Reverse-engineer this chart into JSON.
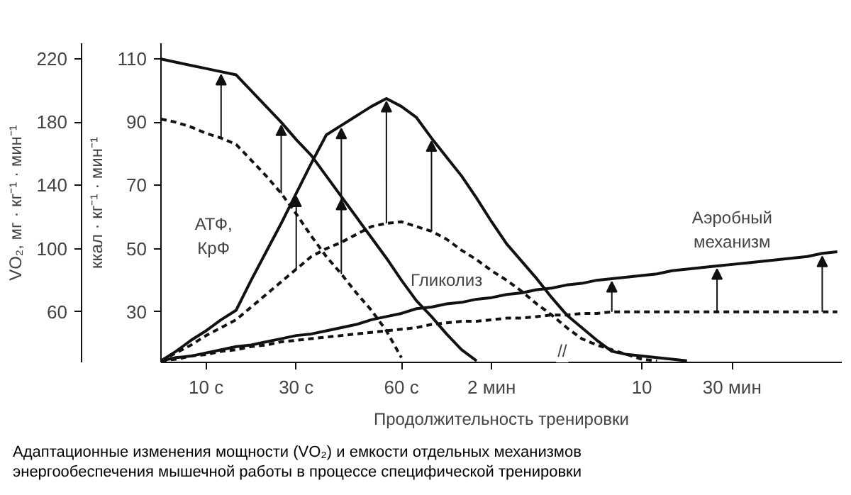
{
  "chart_data": {
    "type": "line",
    "xlabel": "Продолжительность тренировки",
    "ylabel": "VO₂, мг · кг⁻¹ · мин⁻¹",
    "y2label": "ккал · кг⁻¹ · мин⁻¹",
    "categories": [
      null,
      null,
      null,
      "10 с",
      null,
      null,
      null,
      null,
      null,
      "30 с",
      null,
      null,
      null,
      null,
      null,
      null,
      "60 с",
      null,
      null,
      null,
      null,
      null,
      "2 мин",
      null,
      null,
      null,
      null,
      null,
      null,
      null,
      null,
      null,
      "10",
      null,
      null,
      null,
      null,
      null,
      "30 мин",
      null,
      null,
      null,
      null,
      null,
      null,
      null
    ],
    "ylim": [
      28,
      230
    ],
    "y2lim": [
      14,
      115
    ],
    "yticks": [
      60,
      100,
      140,
      180,
      220
    ],
    "y2ticks": [
      30,
      50,
      70,
      90,
      110
    ],
    "grid": false,
    "marker": "none",
    "series": [
      {
        "color": "#111111",
        "line_style": "solid",
        "values": [
          220,
          218,
          216,
          214,
          212,
          210,
          200,
          190,
          180,
          169,
          159,
          146,
          133,
          120,
          107,
          94,
          80,
          67,
          57,
          46,
          36,
          29,
          null,
          null,
          null,
          null,
          null,
          null,
          null,
          null,
          null,
          null,
          null,
          null,
          null,
          null,
          null,
          null,
          null,
          null,
          null,
          null,
          null,
          null,
          null,
          null
        ]
      },
      {
        "color": "#111111",
        "line_style": "dashed",
        "values": [
          182,
          180,
          177,
          173,
          170,
          166,
          156,
          146,
          135,
          122,
          108,
          95,
          84,
          72,
          61,
          48,
          31,
          null,
          null,
          null,
          null,
          null,
          null,
          null,
          null,
          null,
          null,
          null,
          null,
          null,
          null,
          null,
          null,
          null,
          null,
          null,
          null,
          null,
          null,
          null,
          null,
          null,
          null,
          null,
          null,
          null
        ]
      },
      {
        "color": "#111111",
        "line_style": "solid",
        "values": [
          29,
          35,
          42,
          48,
          55,
          61,
          80,
          98,
          116,
          135,
          154,
          172,
          178,
          184,
          190,
          195,
          190,
          183,
          170,
          158,
          146,
          132,
          117,
          103,
          92,
          81,
          69,
          58,
          50,
          42,
          35,
          33,
          32,
          31,
          30,
          29,
          null,
          null,
          null,
          null,
          null,
          null,
          null,
          null,
          null,
          null
        ]
      },
      {
        "color": "#111111",
        "line_style": "dashed",
        "values": [
          29,
          34,
          39,
          45,
          50,
          55,
          63,
          71,
          79,
          87,
          95,
          100,
          104,
          109,
          114,
          116,
          117,
          114,
          111,
          106,
          99,
          93,
          86,
          80,
          73,
          65,
          58,
          50,
          43,
          39,
          36,
          33,
          30,
          29,
          null,
          null,
          null,
          null,
          null,
          null,
          null,
          null,
          null,
          null,
          null,
          null
        ]
      },
      {
        "color": "#111111",
        "line_style": "solid",
        "values": [
          29,
          31,
          32,
          34,
          36,
          38,
          39,
          41,
          43,
          45,
          46,
          48,
          50,
          52,
          55,
          57,
          59,
          62,
          63,
          65,
          66,
          68,
          69,
          71,
          72,
          74,
          75,
          77,
          78,
          80,
          81,
          82,
          83,
          84,
          86,
          87,
          88,
          89,
          90,
          91,
          92,
          93,
          94,
          95,
          97,
          98
        ]
      },
      {
        "color": "#111111",
        "line_style": "dashed",
        "values": [
          29,
          30,
          32,
          33,
          35,
          36,
          38,
          39,
          41,
          42,
          43,
          44,
          45,
          46,
          47,
          48,
          49,
          50,
          52,
          53,
          54,
          54,
          55,
          56,
          56,
          57,
          58,
          58,
          59,
          59,
          60,
          60,
          60,
          60,
          60,
          60,
          60,
          60,
          60,
          60,
          60,
          60,
          60,
          60,
          60,
          60
        ]
      }
    ],
    "annotations": [
      "АТФ,\nКрФ",
      "Гликолиз",
      "Аэробный\nмеханизм",
      "//",
      "Адаптационные изменения мощности (VO₂) и емкости отдельных механизмов\nэнергообеспечения мышечной работы в процессе специфической тренировки"
    ]
  }
}
